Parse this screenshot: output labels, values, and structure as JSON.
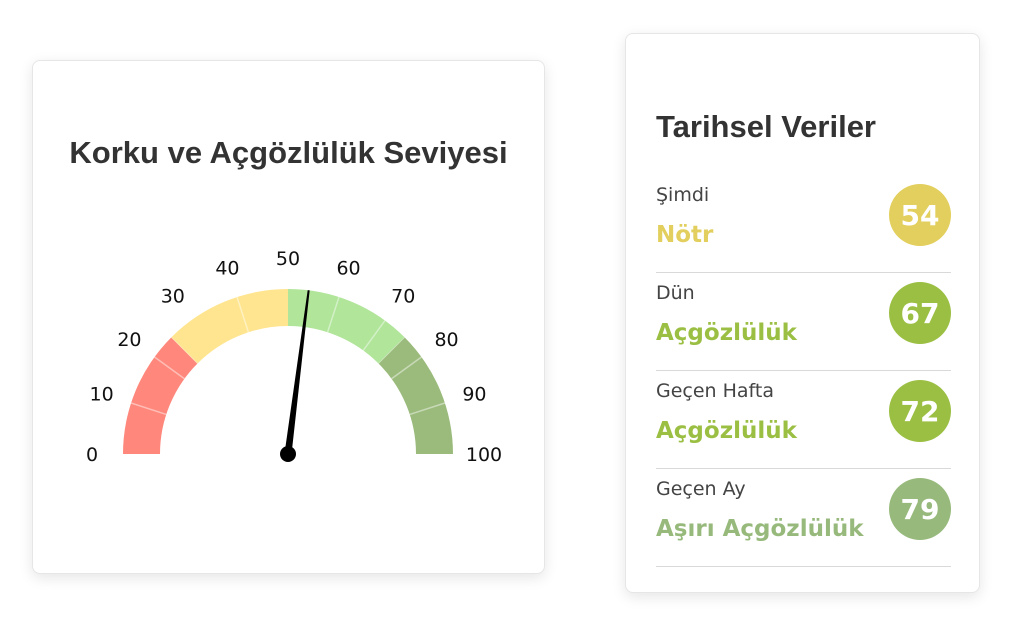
{
  "gauge": {
    "title": "Korku ve Açgözlülük Seviyesi",
    "value": 54,
    "min": 0,
    "max": 100,
    "ticks": [
      "0",
      "10",
      "20",
      "30",
      "40",
      "50",
      "60",
      "70",
      "80",
      "90",
      "100"
    ],
    "bands": [
      {
        "from": 0,
        "to": 25,
        "color": "#ff877b"
      },
      {
        "from": 25,
        "to": 50,
        "color": "#ffe58f"
      },
      {
        "from": 50,
        "to": 75,
        "color": "#b0e59a"
      },
      {
        "from": 75,
        "to": 100,
        "color": "#9bbb7c"
      }
    ],
    "needle_color": "#000000"
  },
  "history": {
    "title": "Tarihsel Veriler",
    "rows": [
      {
        "label": "Şimdi",
        "status": "Nötr",
        "value": "54",
        "color": "#e2cf5d"
      },
      {
        "label": "Dün",
        "status": "Açgözlülük",
        "value": "67",
        "color": "#9bbf43"
      },
      {
        "label": "Geçen Hafta",
        "status": "Açgözlülük",
        "value": "72",
        "color": "#9bbf43"
      },
      {
        "label": "Geçen Ay",
        "status": "Aşırı Açgözlülük",
        "value": "79",
        "color": "#97ba7c"
      }
    ]
  }
}
